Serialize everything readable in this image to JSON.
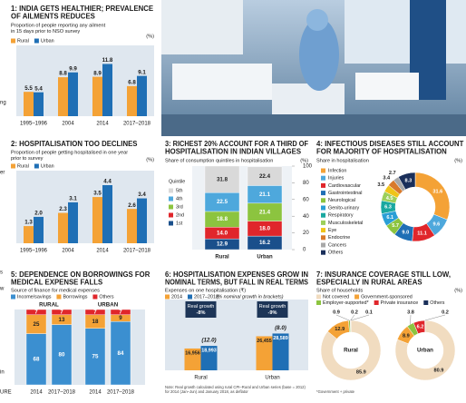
{
  "chart_data": [
    {
      "type": "bar",
      "title": [
        "1: INDIA GETS HEALTHIER; PREVALENCE",
        "OF AILMENTS REDUCES"
      ],
      "subtitle": [
        "Proportion of people reporting any ailment",
        "in 15 days prior to NSO survey"
      ],
      "unit": "(%)",
      "categories": [
        "1995–1996",
        "2004",
        "2014",
        "2017–2018"
      ],
      "series": [
        {
          "name": "Rural",
          "color": "#f4a236",
          "values": [
            5.5,
            8.8,
            8.9,
            6.8
          ]
        },
        {
          "name": "Urban",
          "color": "#1f6fb5",
          "values": [
            5.4,
            9.9,
            11.8,
            9.1
          ]
        }
      ],
      "ylim": [
        0,
        16
      ]
    },
    {
      "type": "bar",
      "title": [
        "2: HOSPITALISATION TOO DECLINES"
      ],
      "subtitle": [
        "Proportion of people getting hospitalised in one year",
        "prior to survey"
      ],
      "unit": "(%)",
      "categories": [
        "1995–1996",
        "2004",
        "2014",
        "2017–2018"
      ],
      "series": [
        {
          "name": "Rural",
          "color": "#f4a236",
          "values": [
            1.3,
            2.3,
            3.5,
            2.6
          ]
        },
        {
          "name": "Urban",
          "color": "#1f6fb5",
          "values": [
            2.0,
            3.1,
            4.4,
            3.4
          ],
          "value_labels": [
            "2.0",
            "3.1",
            "4.4",
            "3.4"
          ]
        }
      ],
      "ylim": [
        0,
        5.5
      ]
    },
    {
      "type": "stacked_bar",
      "title": [
        "3: RICHEST 20% ACCOUNT FOR A THIRD OF",
        "HOSPITALISATION IN INDIAN VILLAGES"
      ],
      "subtitle": [
        "Share of consumption quintiles in hospitalisation"
      ],
      "unit": "(%)",
      "legend_title": "Quintile",
      "categories": [
        "Rural",
        "Urban"
      ],
      "series": [
        {
          "name": "1st",
          "color": "#1a4f8b",
          "values": [
            12.9,
            16.2
          ]
        },
        {
          "name": "2nd",
          "color": "#e0262b",
          "values": [
            14.0,
            18.0
          ],
          "value_labels": [
            "14.0",
            "18.0"
          ]
        },
        {
          "name": "3rd",
          "color": "#8cc43f",
          "values": [
            18.8,
            21.4
          ]
        },
        {
          "name": "4th",
          "color": "#4ea8dc",
          "values": [
            22.5,
            21.1
          ]
        },
        {
          "name": "5th",
          "color": "#d9d9d9",
          "values": [
            31.8,
            22.4
          ]
        }
      ],
      "ylim": [
        0,
        100
      ],
      "yticks": [
        0,
        20,
        40,
        60,
        80,
        100
      ]
    },
    {
      "type": "donut",
      "title": [
        "4: INFECTIOUS DISEASES STILL ACCOUNT",
        "FOR MAJORITY OF HOSPITALISATION"
      ],
      "subtitle": [
        "Share in hospitalisation"
      ],
      "unit": "(%)",
      "categories": [
        "Infection",
        "Injuries",
        "Cardiovascular",
        "Gastrointestinal",
        "Neurological",
        "Genito-urinary",
        "Respiratory",
        "Musculoskeletal",
        "Eye",
        "Endocrine",
        "Cancers",
        "Others"
      ],
      "colors": [
        "#f4a236",
        "#4ea8dc",
        "#e0262b",
        "#1f6fb5",
        "#8cc43f",
        "#2a9fd6",
        "#1aa8a0",
        "#9ccf5a",
        "#f0c419",
        "#d97a2b",
        "#a8a8a8",
        "#1a2f5a"
      ],
      "values": [
        31.6,
        9.6,
        11.1,
        9.0,
        5.7,
        6.1,
        6.3,
        4.5,
        3.5,
        3.4,
        2.7,
        8.3
      ],
      "value_labels": [
        "31.6",
        "9.6",
        "11.1",
        "9.0",
        "5.7",
        "6.1",
        "6.3",
        "4.5",
        "3.5",
        "3.4",
        "2.7",
        "8.3"
      ]
    },
    {
      "type": "stacked_bar",
      "title": [
        "5: DEPENDENCE ON BORROWINGS FOR",
        "MEDICAL EXPENSE FALLS"
      ],
      "subtitle": [
        "Source of finance for medical expenses"
      ],
      "groups": [
        "RURAL",
        "URBAN"
      ],
      "categories": [
        "2014",
        "2017–2018",
        "2014",
        "2017–2018"
      ],
      "series": [
        {
          "name": "Income/savings",
          "color": "#3b8fd0",
          "values": [
            68,
            80,
            75,
            84
          ]
        },
        {
          "name": "Borrowings",
          "color": "#f4a236",
          "values": [
            25,
            13,
            18,
            9
          ]
        },
        {
          "name": "Others",
          "color": "#e0262b",
          "values": [
            7,
            7,
            7,
            7
          ]
        }
      ],
      "ylim": [
        0,
        100
      ]
    },
    {
      "type": "bar",
      "title": [
        "6: HOSPITALISATION EXPENSES GROW IN",
        "NOMINAL TERMS, BUT FALL IN REAL TERMS"
      ],
      "subtitle": [
        "Expenses on one hospitalisation (₹)"
      ],
      "categories": [
        "Rural",
        "Urban"
      ],
      "series": [
        {
          "name": "2014",
          "color": "#f4a236",
          "values": [
            16956,
            26455
          ],
          "value_labels": [
            "16,956",
            "26,455"
          ]
        },
        {
          "name": "2017–2018;",
          "color": "#1f6fb5",
          "values": [
            18993,
            28589
          ],
          "value_labels": [
            "18,993",
            "28,589"
          ]
        }
      ],
      "legend_note": "(% nominal growth in brackets)",
      "nominal_growth": {
        "values": [
          12.0,
          8.0
        ],
        "value_labels": [
          "(12.0)",
          "(8.0)"
        ]
      },
      "real_growth": {
        "label": "Real growth",
        "values": [
          -8,
          -9
        ],
        "value_labels": [
          "-8%",
          "-9%"
        ]
      },
      "ylim": [
        0,
        55000
      ],
      "note": [
        "Note: Real growth calculated using rural CPI–Rural and Urban series (base = 2012)",
        "for 2014 (Jan–Jun) and January 2018, as deflator"
      ]
    },
    {
      "type": "donut",
      "title": [
        "7: INSURANCE COVERAGE STILL LOW,",
        "ESPECIALLY IN RURAL AREAS"
      ],
      "subtitle": [
        "Share of households"
      ],
      "unit": "(%)",
      "categories": [
        "Not covered",
        "Government-sponsored",
        "Employer-supported*",
        "Private insurance",
        "Others"
      ],
      "colors": [
        "#f1dcc0",
        "#f4a236",
        "#8cc43f",
        "#e0262b",
        "#1a2f5a"
      ],
      "series": [
        {
          "name": "Rural",
          "values": [
            85.9,
            12.9,
            0.9,
            0.2,
            0.1
          ]
        },
        {
          "name": "Urban",
          "values": [
            80.9,
            8.9,
            3.8,
            6.2,
            0.2
          ]
        }
      ],
      "note": [
        "*Government + private"
      ]
    }
  ],
  "edge_fragments": [
    "ng",
    "er",
    "s",
    "w",
    "in",
    "URE"
  ]
}
